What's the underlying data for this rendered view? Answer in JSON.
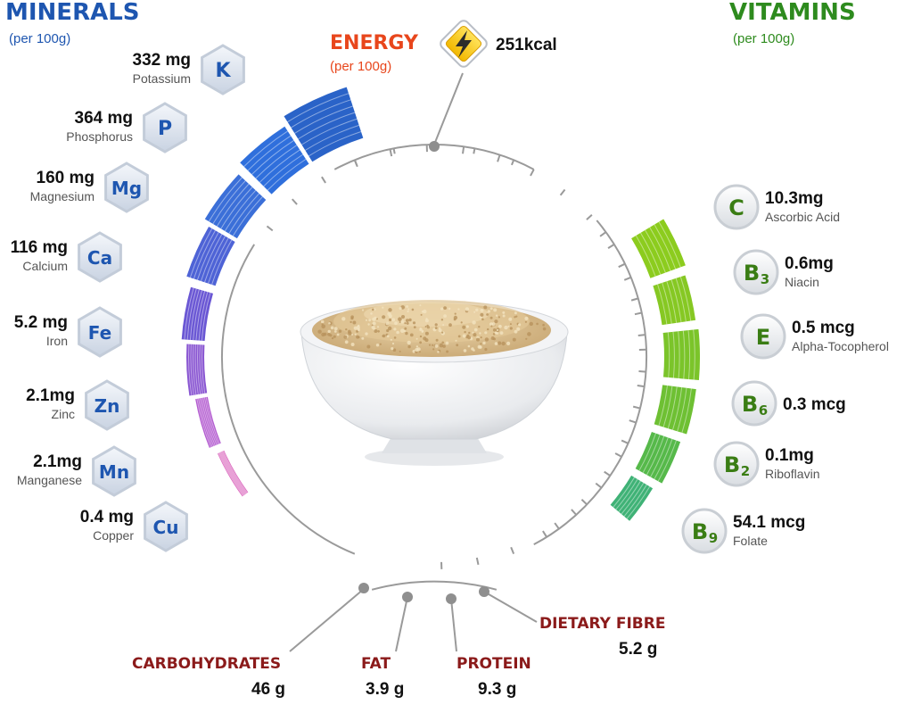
{
  "minerals": {
    "title": "MINERALS",
    "subtitle": "(per 100g)",
    "items": [
      {
        "symbol": "K",
        "amount": "332 mg",
        "name": "Potassium",
        "color": "#2a63c8"
      },
      {
        "symbol": "P",
        "amount": "364 mg",
        "name": "Phosphorus",
        "color": "#2f6fdc"
      },
      {
        "symbol": "Mg",
        "amount": "160 mg",
        "name": "Magnesium",
        "color": "#3b6fd8"
      },
      {
        "symbol": "Ca",
        "amount": "116 mg",
        "name": "Calcium",
        "color": "#4e63d6"
      },
      {
        "symbol": "Fe",
        "amount": "5.2 mg",
        "name": "Iron",
        "color": "#6a57d4"
      },
      {
        "symbol": "Zn",
        "amount": "2.1mg",
        "name": "Zinc",
        "color": "#8a57d2"
      },
      {
        "symbol": "Mn",
        "amount": "2.1mg",
        "name": "Manganese",
        "color": "#b35bd0"
      },
      {
        "symbol": "Cu",
        "amount": "0.4 mg",
        "name": "Copper",
        "color": "#d85ab8"
      }
    ]
  },
  "vitamins": {
    "title": "VITAMINS",
    "subtitle": "(per 100g)",
    "items": [
      {
        "symbol": "C",
        "sub": "",
        "amount": "10.3mg",
        "name": "Ascorbic Acid",
        "color": "#8ccc1e"
      },
      {
        "symbol": "B",
        "sub": "3",
        "amount": "0.6mg",
        "name": "Niacin",
        "color": "#86c823"
      },
      {
        "symbol": "E",
        "sub": "",
        "amount": "0.5 mcg",
        "name": "Alpha-Tocopherol",
        "color": "#7bc42a"
      },
      {
        "symbol": "B",
        "sub": "6",
        "amount": "0.3 mcg",
        "name": "",
        "color": "#6ec033"
      },
      {
        "symbol": "B",
        "sub": "2",
        "amount": "0.1mg",
        "name": "Riboflavin",
        "color": "#56b94a"
      },
      {
        "symbol": "B",
        "sub": "9",
        "amount": "54.1 mcg",
        "name": "Folate",
        "color": "#3fb276"
      }
    ]
  },
  "energy": {
    "title": "ENERGY",
    "subtitle": "(per 100g)",
    "value": "251kcal",
    "icon": "lightning-icon",
    "color": "#e8461c"
  },
  "nutrients": [
    {
      "label": "CARBOHYDRATES",
      "value": "46 g"
    },
    {
      "label": "FAT",
      "value": "3.9 g"
    },
    {
      "label": "PROTEIN",
      "value": "9.3 g"
    },
    {
      "label": "DIETARY FIBRE",
      "value": "5.2 g"
    }
  ],
  "colors": {
    "minerals_title": "#1e56b0",
    "vitamins_title": "#2e8b1e",
    "nutrient_label": "#8b1a1a",
    "scale_gray": "#9a9a9a"
  }
}
